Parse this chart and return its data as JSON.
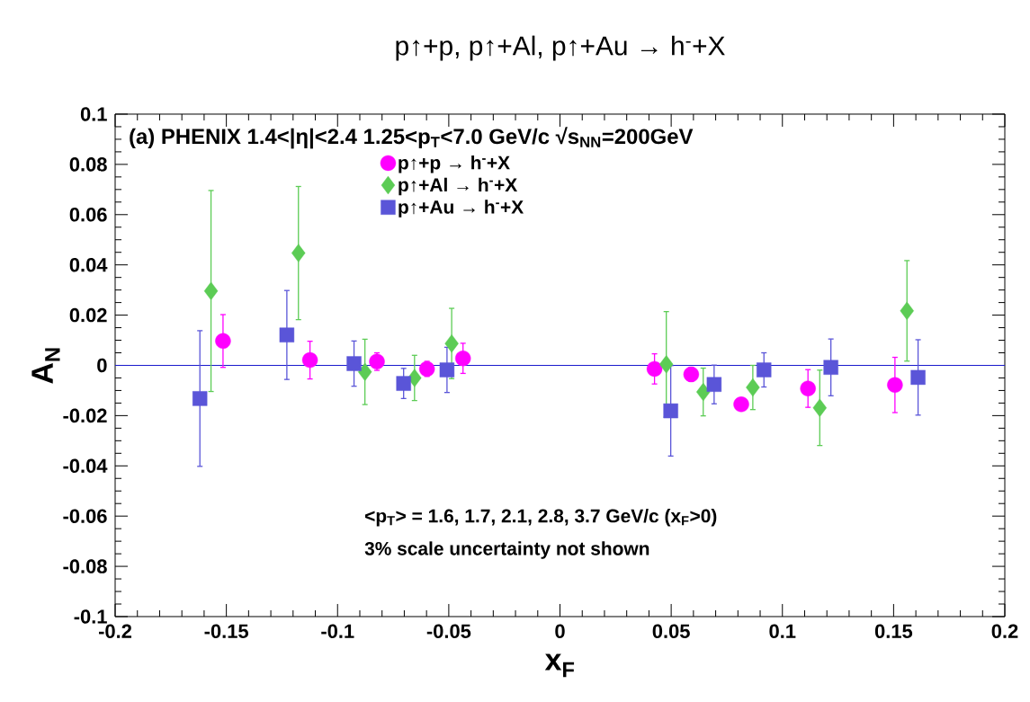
{
  "chart_data": {
    "type": "scatter",
    "title": "p↑+p, p↑+Al, p↑+Au → h$^{-}$+X",
    "xlabel": "x$_{F}$",
    "ylabel": "A$_{N}$",
    "annotations": [
      "(a) PHENIX  1.4<|η|<2.4  1.25<p$_{T}$<7.0 GeV/c √s$_{NN}$=200GeV",
      "<p$_{T}$> = 1.6, 1.7, 2.1, 2.8, 3.7 GeV/c (x$_{F}$>0)",
      "3% scale uncertainty not shown"
    ],
    "xlim": [
      -0.2,
      0.2
    ],
    "ylim": [
      -0.1,
      0.1
    ],
    "xticks": [
      -0.2,
      -0.15,
      -0.1,
      -0.05,
      0,
      0.05,
      0.1,
      0.15,
      0.2
    ],
    "yticks": [
      -0.1,
      -0.08,
      -0.06,
      -0.04,
      -0.02,
      0,
      0.02,
      0.04,
      0.06,
      0.08,
      0.1
    ],
    "legend": "top",
    "ref_lines": [
      {
        "axis": "y",
        "value": 0,
        "color": "#1a1acc"
      }
    ],
    "series": [
      {
        "name": "p↑+p → h$^{-}$+X",
        "color": "#ff00ff",
        "marker": "circle",
        "x": [
          -0.1515,
          -0.1124,
          -0.0823,
          -0.0598,
          -0.0436,
          0.0425,
          0.059,
          0.0815,
          0.1115,
          0.1506
        ],
        "values": [
          0.0097,
          0.0021,
          0.0015,
          -0.0014,
          0.0028,
          -0.0014,
          -0.0036,
          -0.0155,
          -0.0092,
          -0.0078
        ],
        "errors": [
          0.0105,
          0.0075,
          0.0035,
          0.003,
          0.006,
          0.006,
          0.0028,
          0.002,
          0.0075,
          0.011
        ]
      },
      {
        "name": "p↑+Al → h$^{-}$+X",
        "color": "#5ccc55",
        "marker": "diamond",
        "x": [
          -0.1569,
          -0.1176,
          -0.0877,
          -0.0654,
          -0.0487,
          0.0478,
          0.0644,
          0.0867,
          0.1168,
          0.156
        ],
        "values": [
          0.0296,
          0.0447,
          -0.0026,
          -0.005,
          0.0087,
          0.0004,
          -0.0106,
          -0.0088,
          -0.0169,
          0.0217
        ],
        "errors": [
          0.04,
          0.0265,
          0.013,
          0.009,
          0.014,
          0.021,
          0.0095,
          0.0088,
          0.015,
          0.02
        ]
      },
      {
        "name": "p↑+Au → h$^{-}$+X",
        "color": "#5a55d8",
        "marker": "square",
        "x": [
          -0.1619,
          -0.1228,
          -0.0926,
          -0.0703,
          -0.0508,
          0.0498,
          0.0693,
          0.0917,
          0.1218,
          0.161
        ],
        "values": [
          -0.0132,
          0.0121,
          0.0007,
          -0.0072,
          -0.0018,
          -0.0181,
          -0.0076,
          -0.0018,
          -0.0008,
          -0.0048
        ],
        "errors": [
          0.027,
          0.0177,
          0.009,
          0.006,
          0.009,
          0.018,
          0.0077,
          0.0068,
          0.0113,
          0.015
        ]
      }
    ]
  }
}
